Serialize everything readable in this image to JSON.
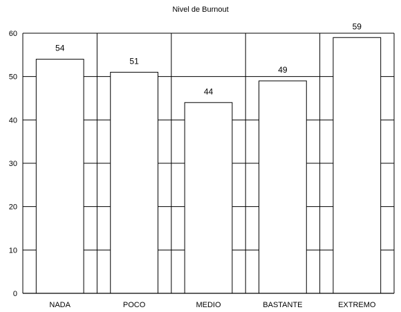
{
  "chart_data": {
    "type": "bar",
    "title": "Nivel de Burnout",
    "categories": [
      "NADA",
      "POCO",
      "MEDIO",
      "BASTANTE",
      "EXTREMO"
    ],
    "values": [
      54,
      51,
      44,
      49,
      59
    ],
    "xlabel": "",
    "ylabel": "",
    "ylim": [
      0,
      60
    ],
    "yticks": [
      "0",
      "10",
      "20",
      "30",
      "40",
      "50",
      "60"
    ],
    "grid": true,
    "legend": "none",
    "bar_fill": "#ffffff",
    "bar_stroke": "#000000",
    "grid_color": "#000000"
  }
}
